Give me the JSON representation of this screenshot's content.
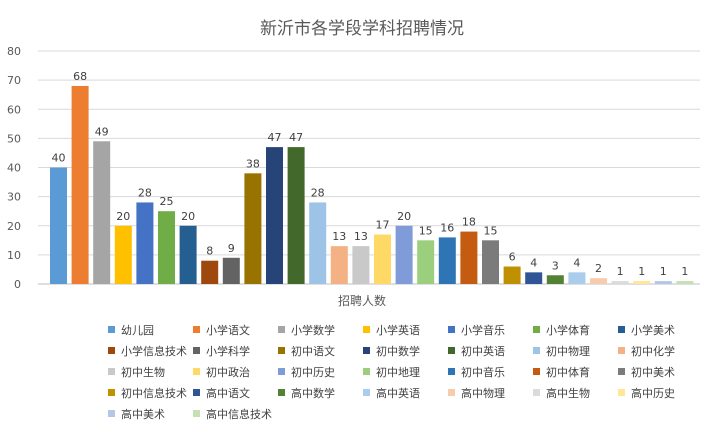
{
  "chart_data": {
    "type": "bar",
    "title": "新沂市各学段学科招聘情况",
    "xlabel": "招聘人数",
    "ylabel": "",
    "ylim": [
      0,
      80
    ],
    "yticks": [
      "0",
      "10",
      "20",
      "30",
      "40",
      "50",
      "60",
      "70",
      "80"
    ],
    "grid": true,
    "legend_position": "bottom",
    "series": [
      {
        "name": "幼儿园",
        "value": 40,
        "color": "#5B9BD5"
      },
      {
        "name": "小学语文",
        "value": 68,
        "color": "#ED7D31"
      },
      {
        "name": "小学数学",
        "value": 49,
        "color": "#A5A5A5"
      },
      {
        "name": "小学英语",
        "value": 20,
        "color": "#FFC000"
      },
      {
        "name": "小学音乐",
        "value": 28,
        "color": "#4472C4"
      },
      {
        "name": "小学体育",
        "value": 25,
        "color": "#70AD47"
      },
      {
        "name": "小学美术",
        "value": 20,
        "color": "#255E91"
      },
      {
        "name": "小学信息技术",
        "value": 8,
        "color": "#9E480E"
      },
      {
        "name": "小学科学",
        "value": 9,
        "color": "#636363"
      },
      {
        "name": "初中语文",
        "value": 38,
        "color": "#997300"
      },
      {
        "name": "初中数学",
        "value": 47,
        "color": "#264478"
      },
      {
        "name": "初中英语",
        "value": 47,
        "color": "#43682B"
      },
      {
        "name": "初中物理",
        "value": 28,
        "color": "#9DC3E6"
      },
      {
        "name": "初中化学",
        "value": 13,
        "color": "#F4B183"
      },
      {
        "name": "初中生物",
        "value": 13,
        "color": "#C9C9C9"
      },
      {
        "name": "初中政治",
        "value": 17,
        "color": "#FFD966"
      },
      {
        "name": "初中历史",
        "value": 20,
        "color": "#7F9CD8"
      },
      {
        "name": "初中地理",
        "value": 15,
        "color": "#9BCF7E"
      },
      {
        "name": "初中音乐",
        "value": 16,
        "color": "#2E75B6"
      },
      {
        "name": "初中体育",
        "value": 18,
        "color": "#C55A11"
      },
      {
        "name": "初中美术",
        "value": 15,
        "color": "#7B7B7B"
      },
      {
        "name": "初中信息技术",
        "value": 6,
        "color": "#BF9000"
      },
      {
        "name": "高中语文",
        "value": 4,
        "color": "#2F5597"
      },
      {
        "name": "高中数学",
        "value": 3,
        "color": "#548235"
      },
      {
        "name": "高中英语",
        "value": 4,
        "color": "#A9CDEB"
      },
      {
        "name": "高中物理",
        "value": 2,
        "color": "#F8CBAD"
      },
      {
        "name": "高中生物",
        "value": 1,
        "color": "#DBDBDB"
      },
      {
        "name": "高中历史",
        "value": 1,
        "color": "#FFE699"
      },
      {
        "name": "高中美术",
        "value": 1,
        "color": "#B4C7E7"
      },
      {
        "name": "高中信息技术",
        "value": 1,
        "color": "#C5E0B4"
      }
    ]
  }
}
